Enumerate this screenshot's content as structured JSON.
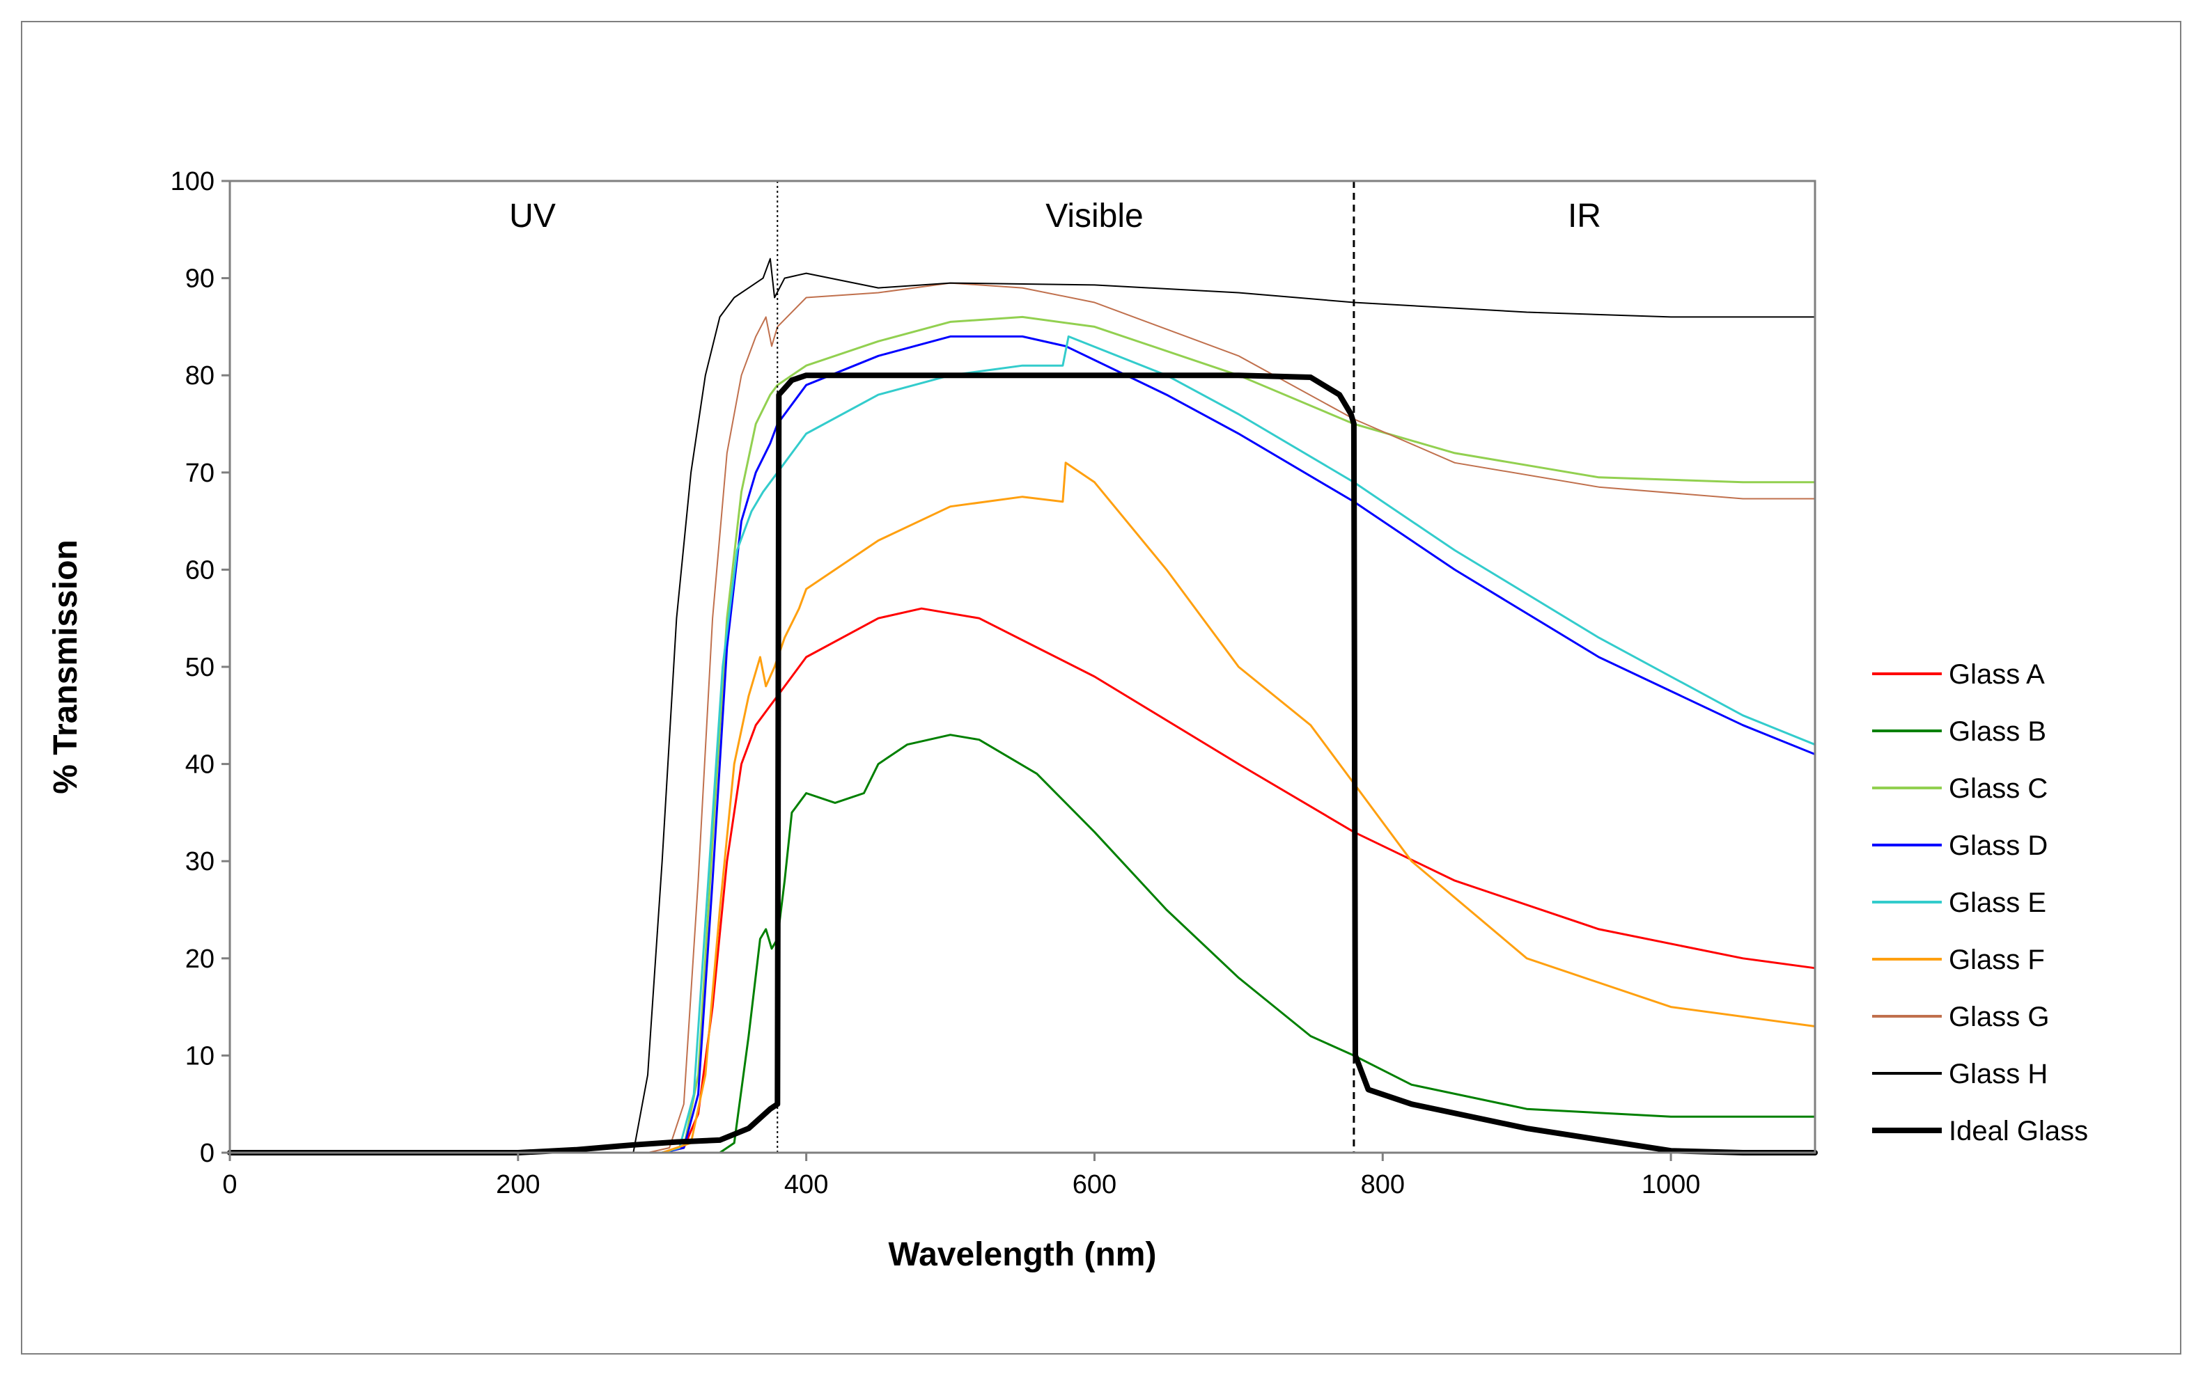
{
  "chart_data": {
    "type": "line",
    "title": "",
    "xlabel": "Wavelength (nm)",
    "ylabel": "% Transmission",
    "xlim": [
      0,
      1100
    ],
    "ylim": [
      0,
      100
    ],
    "xticks": [
      0,
      200,
      400,
      600,
      800,
      1000
    ],
    "yticks": [
      0,
      10,
      20,
      30,
      40,
      50,
      60,
      70,
      80,
      90,
      100
    ],
    "grid": false,
    "legend_position": "right",
    "regions": [
      {
        "label": "UV",
        "x_center": 210
      },
      {
        "label": "Visible",
        "x_center": 600
      },
      {
        "label": "IR",
        "x_center": 940
      }
    ],
    "dividers": [
      {
        "x": 380,
        "style": "dotted"
      },
      {
        "x": 780,
        "style": "dashed"
      }
    ],
    "series": [
      {
        "name": "Glass A",
        "color": "#ff0000",
        "width": 3,
        "x": [
          0,
          300,
          315,
          325,
          335,
          345,
          355,
          365,
          375,
          380,
          400,
          450,
          480,
          520,
          560,
          600,
          700,
          780,
          850,
          950,
          1050,
          1100
        ],
        "y": [
          0,
          0,
          0.5,
          4,
          15,
          30,
          40,
          44,
          46,
          47,
          51,
          55,
          56,
          55,
          52,
          49,
          40,
          33,
          28,
          23,
          20,
          19
        ]
      },
      {
        "name": "Glass B",
        "color": "#008000",
        "width": 3,
        "x": [
          0,
          340,
          350,
          360,
          368,
          372,
          376,
          380,
          385,
          390,
          400,
          420,
          440,
          450,
          470,
          500,
          520,
          560,
          600,
          650,
          700,
          750,
          780,
          820,
          900,
          1000,
          1100
        ],
        "y": [
          0,
          0,
          1,
          12,
          22,
          23,
          21,
          22,
          28,
          35,
          37,
          36,
          37,
          40,
          42,
          43,
          42.5,
          39,
          33,
          25,
          18,
          12,
          10,
          7,
          4.5,
          3.7,
          3.7
        ]
      },
      {
        "name": "Glass C",
        "color": "#92d050",
        "width": 3,
        "x": [
          0,
          300,
          315,
          325,
          335,
          345,
          355,
          365,
          375,
          380,
          400,
          450,
          500,
          550,
          600,
          700,
          780,
          850,
          950,
          1050,
          1100
        ],
        "y": [
          0,
          0,
          0.5,
          8,
          32,
          55,
          68,
          75,
          78,
          79,
          81,
          83.5,
          85.5,
          86,
          85,
          80,
          75,
          72,
          69.5,
          69,
          69
        ]
      },
      {
        "name": "Glass D",
        "color": "#0000ff",
        "width": 3,
        "x": [
          0,
          300,
          315,
          325,
          335,
          345,
          355,
          365,
          375,
          380,
          400,
          450,
          500,
          550,
          580,
          650,
          700,
          780,
          850,
          950,
          1050,
          1100
        ],
        "y": [
          0,
          0,
          0.5,
          6,
          28,
          52,
          65,
          70,
          73,
          75,
          79,
          82,
          84,
          84,
          83,
          78,
          74,
          67,
          60,
          51,
          44,
          41
        ]
      },
      {
        "name": "Glass E",
        "color": "#33cccc",
        "width": 3,
        "x": [
          0,
          300,
          312,
          322,
          332,
          342,
          352,
          362,
          370,
          380,
          400,
          450,
          500,
          550,
          578,
          582,
          650,
          700,
          780,
          850,
          950,
          1050,
          1100
        ],
        "y": [
          0,
          0,
          0.5,
          6,
          28,
          50,
          62,
          66,
          68,
          70,
          74,
          78,
          80,
          81,
          81,
          84,
          80,
          76,
          69,
          62,
          53,
          45,
          42
        ]
      },
      {
        "name": "Glass F",
        "color": "#ffa010",
        "width": 3,
        "x": [
          0,
          300,
          320,
          330,
          340,
          350,
          360,
          368,
          372,
          378,
          385,
          395,
          400,
          450,
          500,
          550,
          578,
          580,
          600,
          650,
          700,
          750,
          780,
          820,
          900,
          1000,
          1100
        ],
        "y": [
          0,
          0,
          1,
          8,
          25,
          40,
          47,
          51,
          48,
          50,
          53,
          56,
          58,
          63,
          66.5,
          67.5,
          67,
          71,
          69,
          60,
          50,
          44,
          38,
          30,
          20,
          15,
          13
        ]
      },
      {
        "name": "Glass G",
        "color": "#c0704d",
        "width": 2,
        "x": [
          0,
          290,
          305,
          315,
          325,
          335,
          345,
          355,
          365,
          372,
          376,
          380,
          400,
          450,
          500,
          550,
          600,
          700,
          780,
          850,
          950,
          1050,
          1100
        ],
        "y": [
          0,
          0,
          0.5,
          5,
          28,
          55,
          72,
          80,
          84,
          86,
          83,
          85,
          88,
          88.5,
          89.5,
          89,
          87.5,
          82,
          75.5,
          71,
          68.5,
          67.3,
          67.3
        ]
      },
      {
        "name": "Glass H",
        "color": "#000000",
        "width": 2,
        "x": [
          0,
          280,
          290,
          300,
          310,
          320,
          330,
          340,
          350,
          360,
          370,
          375,
          378,
          385,
          400,
          450,
          500,
          600,
          700,
          780,
          900,
          1000,
          1100
        ],
        "y": [
          0,
          0,
          8,
          30,
          55,
          70,
          80,
          86,
          88,
          89,
          90,
          92,
          88,
          90,
          90.5,
          89,
          89.5,
          89.3,
          88.5,
          87.5,
          86.5,
          86,
          86
        ]
      },
      {
        "name": "Ideal Glass",
        "color": "#000000",
        "width": 8,
        "x": [
          0,
          200,
          240,
          280,
          310,
          340,
          360,
          375,
          380,
          381,
          390,
          400,
          500,
          600,
          700,
          750,
          770,
          778,
          780,
          781,
          790,
          820,
          900,
          1000,
          1050,
          1100
        ],
        "y": [
          0,
          0,
          0.3,
          0.8,
          1.1,
          1.3,
          2.5,
          4.5,
          5,
          78,
          79.5,
          80,
          80,
          80,
          80,
          79.8,
          78,
          76,
          75,
          10,
          6.5,
          5,
          2.5,
          0.2,
          0,
          0
        ]
      }
    ]
  }
}
